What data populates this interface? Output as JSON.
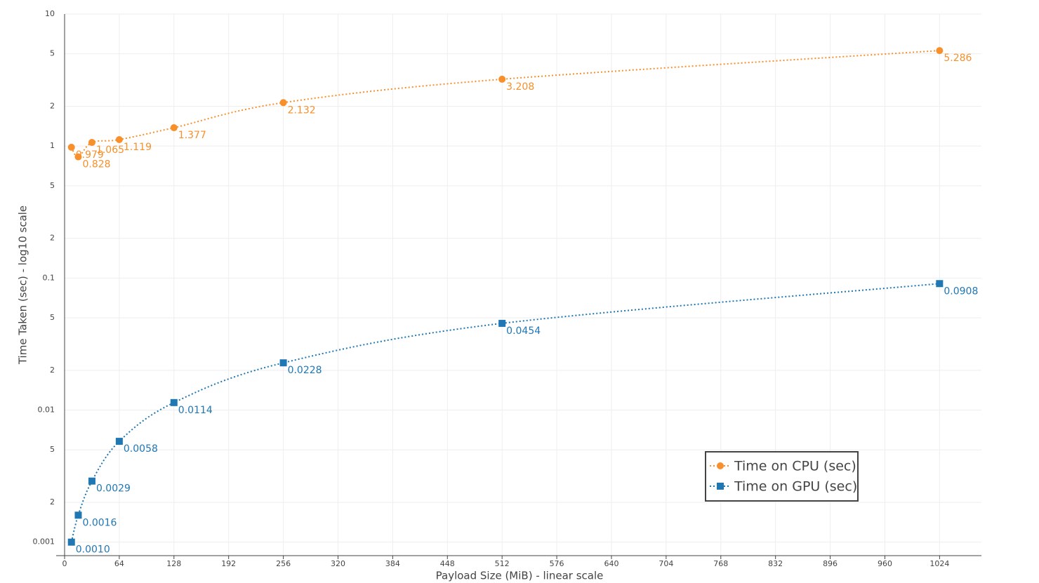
{
  "chart_data": {
    "type": "line",
    "x_label": "Payload Size (MiB) - linear scale",
    "y_label": "Time Taken (sec) - log10 scale",
    "x": [
      8,
      16,
      32,
      64,
      128,
      256,
      512,
      1024
    ],
    "series": [
      {
        "name": "Time on CPU (sec)",
        "color": "#f7902b",
        "marker": "circle",
        "values": [
          0.979,
          0.828,
          1.065,
          1.119,
          1.377,
          2.132,
          3.208,
          5.286
        ]
      },
      {
        "name": "Time on GPU (sec)",
        "color": "#1f77b4",
        "marker": "square",
        "values": [
          0.001,
          0.0016,
          0.0029,
          0.0058,
          0.0114,
          0.0228,
          0.0454,
          0.0908
        ],
        "value_labels": [
          "0.0010",
          "0.0016",
          "0.0029",
          "0.0058",
          "0.0114",
          "0.0228",
          "0.0454",
          "0.0908"
        ]
      }
    ],
    "xlim": [
      0,
      1073
    ],
    "xticks": [
      0,
      64,
      128,
      192,
      256,
      320,
      384,
      448,
      512,
      576,
      640,
      704,
      768,
      832,
      896,
      960,
      1024
    ],
    "ylim": [
      0.00079,
      10
    ],
    "y_scale": "log",
    "yticks": [
      0.001,
      {
        "value": 0.002,
        "label": "2"
      },
      {
        "value": 0.005,
        "label": "5"
      },
      0.01,
      {
        "value": 0.02,
        "label": "2"
      },
      {
        "value": 0.05,
        "label": "5"
      },
      0.1,
      {
        "value": 0.2,
        "label": "2"
      },
      {
        "value": 0.5,
        "label": "5"
      },
      1,
      2,
      5,
      10
    ],
    "grid": true,
    "legend": "bottom-right"
  }
}
